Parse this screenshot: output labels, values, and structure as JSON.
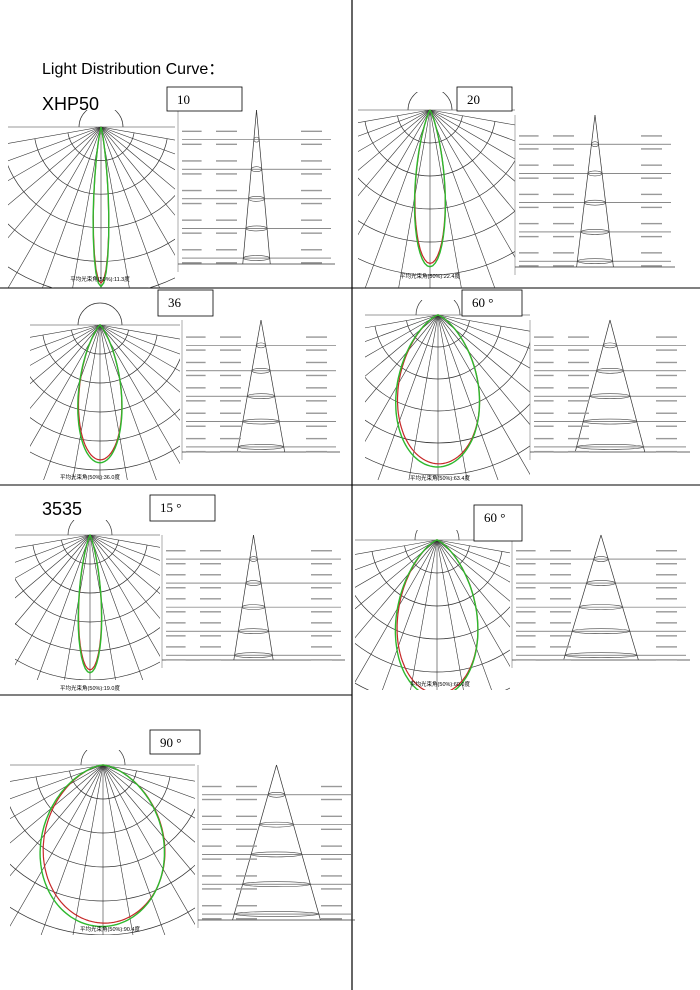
{
  "header": {
    "title": "Light Distribution Curve：",
    "group1": "XHP50",
    "group2": "3535"
  },
  "panels": [
    {
      "label": "10",
      "caption": "平均光束角(50%):11.3度"
    },
    {
      "label": "20",
      "caption": "平均光束角(50%):22.4度"
    },
    {
      "label": "36",
      "caption": "平均光束角(50%):36.0度"
    },
    {
      "label": "60 °",
      "caption": "平均光束角(50%):63.4度"
    },
    {
      "label": "15 °",
      "caption": "平均光束角(50%):19.0度"
    },
    {
      "label": "60 °",
      "caption": "平均光束角(50%):60.0度"
    },
    {
      "label": "90 °",
      "caption": "平均光束角(50%):90.4度"
    }
  ]
}
